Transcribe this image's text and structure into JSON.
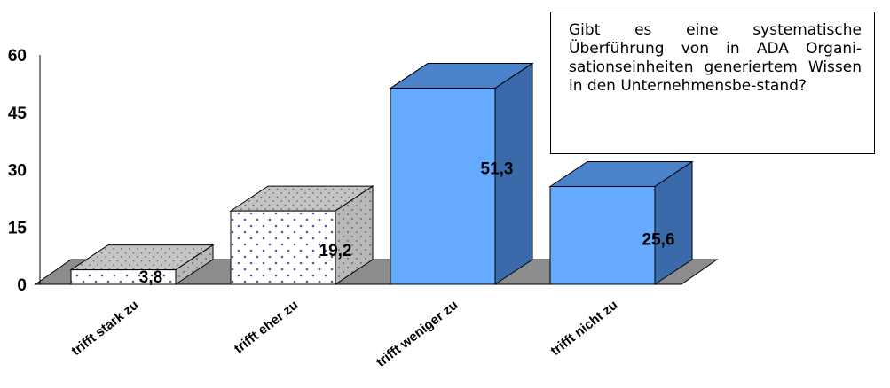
{
  "chart_data": {
    "type": "bar",
    "categories": [
      "trifft stark zu",
      "trifft eher zu",
      "trifft weniger zu",
      "trifft nicht zu"
    ],
    "values": [
      3.8,
      19.2,
      51.3,
      25.6
    ],
    "value_labels": [
      "3,8",
      "19,2",
      "51,3",
      "25,6"
    ],
    "ylim": [
      0,
      60
    ],
    "yticks": [
      "0",
      "15",
      "30",
      "45",
      "60"
    ],
    "grid": false,
    "three_d": true,
    "annotation": "Gibt es eine systematische Überführung von in ADA Organi-sationseinheiten generiertem Wissen in den Unternehmensbe-stand?"
  },
  "colors": {
    "dotted_front": "#ffffff",
    "dotted_dots": "#5a5aa0",
    "dotted_side": "#b8b8b8",
    "dotted_top": "#c4c4c4",
    "blue_front": "#66aaff",
    "blue_side": "#3a6aaa",
    "blue_top": "#4a82cc",
    "floor": "#8c8c8c"
  }
}
